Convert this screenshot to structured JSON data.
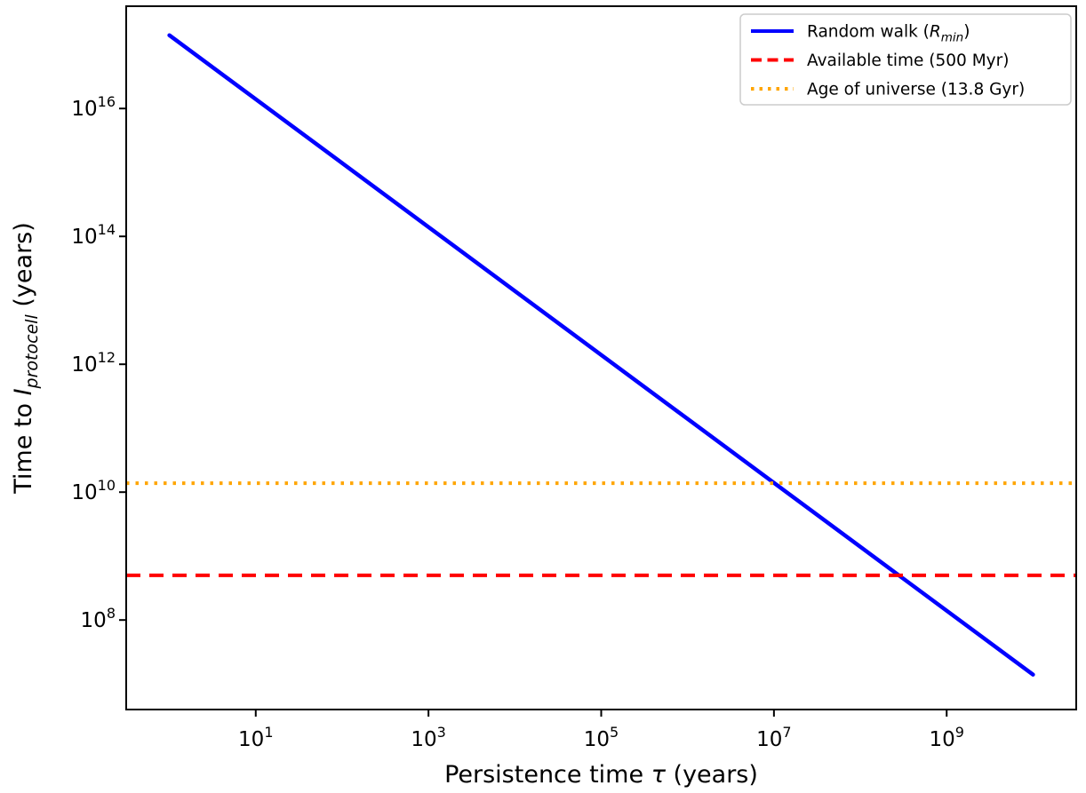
{
  "chart_data": {
    "type": "line",
    "title": "",
    "background": "#ffffff",
    "x_scale": "log",
    "y_scale": "log",
    "x_range_log": [
      -0.5,
      10.5
    ],
    "y_range_log": [
      6.6,
      17.6
    ],
    "x_tick_exponents": [
      1,
      3,
      5,
      7,
      9
    ],
    "y_tick_exponents": [
      8,
      10,
      12,
      14,
      16
    ],
    "grid": false,
    "xlabel": "Persistence time τ (years)",
    "xlabel_parts": [
      {
        "t": "Persistence time "
      },
      {
        "t": "τ",
        "i": true
      },
      {
        "t": " (years)"
      }
    ],
    "ylabel": "Time to I_protocell (years)",
    "ylabel_parts": [
      {
        "t": "Time to "
      },
      {
        "t": "I",
        "i": true
      },
      {
        "t": "protocell",
        "i": true,
        "sub": true
      },
      {
        "t": " (years)"
      }
    ],
    "series": [
      {
        "name": "random-walk",
        "label": "Random walk (R_min)",
        "type": "line",
        "color": "#0000ff",
        "line": "solid",
        "width": 4.5,
        "relation": "T = 1.4e17 / tau (slope -1 on log-log)",
        "points": [
          [
            1,
            1.4e+17
          ],
          [
            100,
            1400000000000000.0
          ],
          [
            10000,
            14000000000000.0
          ],
          [
            1000000,
            140000000000.0
          ],
          [
            100000000,
            1400000000.0
          ],
          [
            10000000000,
            14000000.0
          ]
        ]
      },
      {
        "name": "available-time",
        "label": "Available time (500 Myr)",
        "type": "hline",
        "color": "#ff0000",
        "line": "dashed",
        "width": 4,
        "y_value": 500000000.0
      },
      {
        "name": "age-of-universe",
        "label": "Age of universe (13.8 Gyr)",
        "type": "hline",
        "color": "#ffa500",
        "line": "dotted",
        "width": 4,
        "y_value": 13800000000.0
      }
    ],
    "legend": {
      "position": "upper right",
      "entries": [
        {
          "name": "random-walk",
          "color": "#0000ff",
          "line": "solid",
          "label": "Random walk (R_min)",
          "label_parts": [
            {
              "t": "Random walk ("
            },
            {
              "t": "R",
              "i": true
            },
            {
              "t": "min",
              "i": true,
              "sub": true
            },
            {
              "t": ")"
            }
          ]
        },
        {
          "name": "available-time",
          "color": "#ff0000",
          "line": "dashed",
          "label": "Available time (500 Myr)",
          "label_parts": [
            {
              "t": "Available time (500 Myr)"
            }
          ]
        },
        {
          "name": "age-of-universe",
          "color": "#ffa500",
          "line": "dotted",
          "label": "Age of universe (13.8 Gyr)",
          "label_parts": [
            {
              "t": "Age of universe (13.8 Gyr)"
            }
          ]
        }
      ]
    }
  }
}
